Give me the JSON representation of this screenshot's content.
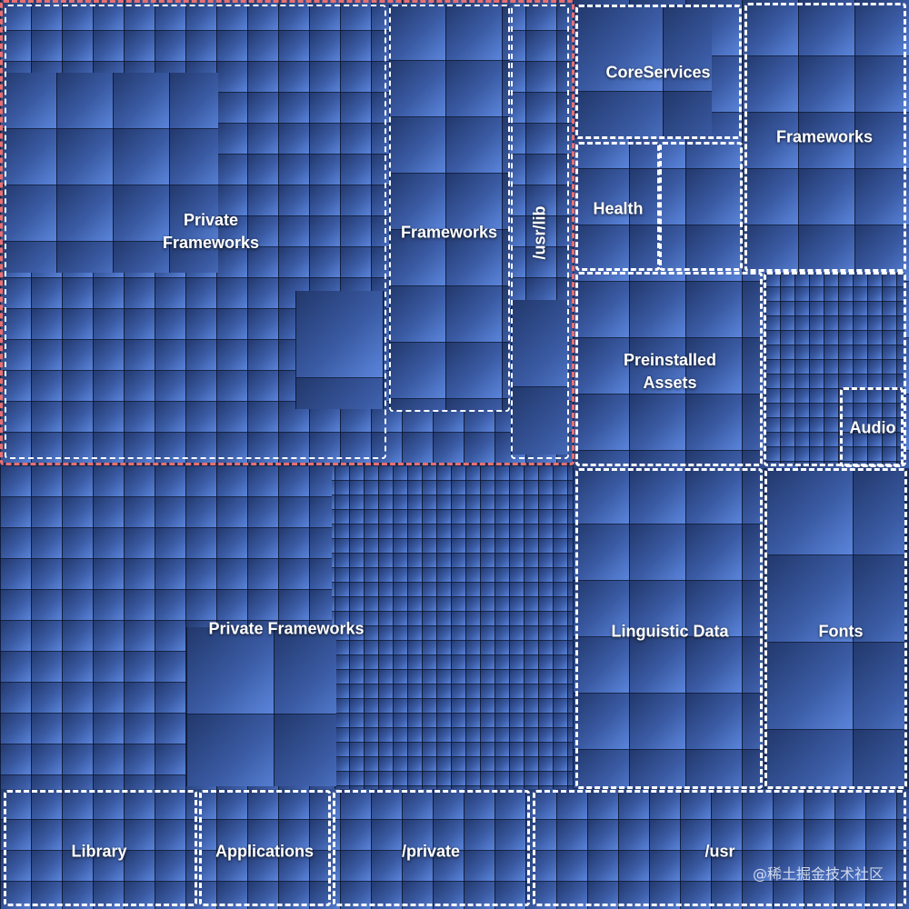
{
  "regions": [
    {
      "label": "Private Frameworks"
    },
    {
      "label": "Frameworks"
    },
    {
      "label": "/usr/lib"
    },
    {
      "label": "CoreServices"
    },
    {
      "label": "Frameworks"
    },
    {
      "label": "Health"
    },
    {
      "label": "Preinstalled Assets"
    },
    {
      "label": "Audio"
    },
    {
      "label": "Private Frameworks"
    },
    {
      "label": "Linguistic Data"
    },
    {
      "label": "Fonts"
    },
    {
      "label": "Library"
    },
    {
      "label": "Applications"
    },
    {
      "label": "/private"
    },
    {
      "label": "/usr"
    }
  ],
  "watermark": "@稀土掘金技术社区"
}
